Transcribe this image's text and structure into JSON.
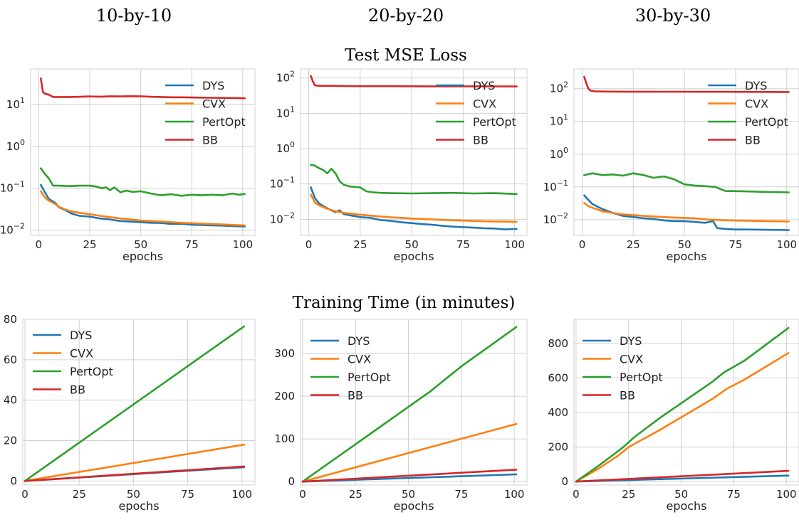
{
  "figure": {
    "column_titles": [
      "10-by-10",
      "20-by-20",
      "30-by-30"
    ],
    "row_titles": [
      "Test MSE Loss",
      "Training Time (in minutes)"
    ]
  },
  "colors": {
    "DYS": "#1f77b4",
    "CVX": "#ff7f0e",
    "PertOpt": "#2ca02c",
    "BB": "#d62728"
  },
  "chart_data": [
    {
      "type": "line",
      "title": "10-by-10",
      "xlabel": "epochs",
      "ylabel": "",
      "yscale": "log",
      "xlim": [
        -4,
        106
      ],
      "ylim": [
        0.0075,
        70
      ],
      "xticks": [
        0,
        25,
        50,
        75,
        100
      ],
      "yticks": [
        {
          "value": 0.01,
          "base": "10",
          "exp": "−2"
        },
        {
          "value": 0.1,
          "base": "10",
          "exp": "−1"
        },
        {
          "value": 1,
          "base": "10",
          "exp": "0"
        },
        {
          "value": 10,
          "base": "10",
          "exp": "1"
        }
      ],
      "legend": "top-right",
      "legend_entries": [
        "DYS",
        "CVX",
        "PertOpt",
        "BB"
      ],
      "grid": true,
      "series": [
        {
          "name": "DYS",
          "x": [
            1,
            3,
            5,
            8,
            10,
            13,
            16,
            20,
            25,
            30,
            35,
            40,
            45,
            50,
            55,
            60,
            65,
            70,
            75,
            80,
            85,
            90,
            95,
            101
          ],
          "y": [
            0.12,
            0.08,
            0.055,
            0.045,
            0.035,
            0.03,
            0.025,
            0.022,
            0.021,
            0.019,
            0.018,
            0.0165,
            0.016,
            0.0155,
            0.015,
            0.0148,
            0.014,
            0.0142,
            0.0135,
            0.0132,
            0.013,
            0.0128,
            0.0125,
            0.0122
          ]
        },
        {
          "name": "CVX",
          "x": [
            1,
            3,
            5,
            8,
            10,
            13,
            16,
            20,
            25,
            30,
            35,
            40,
            45,
            50,
            55,
            60,
            65,
            70,
            75,
            80,
            85,
            90,
            95,
            101
          ],
          "y": [
            0.085,
            0.06,
            0.05,
            0.042,
            0.036,
            0.031,
            0.028,
            0.026,
            0.024,
            0.022,
            0.0205,
            0.019,
            0.018,
            0.017,
            0.0165,
            0.016,
            0.0155,
            0.015,
            0.0147,
            0.0143,
            0.014,
            0.0137,
            0.0133,
            0.013
          ]
        },
        {
          "name": "PertOpt",
          "x": [
            1,
            3,
            5,
            7,
            10,
            15,
            20,
            25,
            28,
            31,
            33,
            35,
            37,
            40,
            43,
            46,
            50,
            55,
            60,
            65,
            70,
            75,
            80,
            85,
            90,
            95,
            98,
            101
          ],
          "y": [
            0.3,
            0.22,
            0.17,
            0.115,
            0.115,
            0.112,
            0.115,
            0.115,
            0.11,
            0.1,
            0.105,
            0.09,
            0.105,
            0.08,
            0.088,
            0.082,
            0.085,
            0.075,
            0.068,
            0.072,
            0.066,
            0.07,
            0.068,
            0.07,
            0.068,
            0.075,
            0.07,
            0.073
          ]
        },
        {
          "name": "BB",
          "x": [
            1,
            2,
            3,
            5,
            7,
            10,
            15,
            20,
            25,
            30,
            35,
            40,
            45,
            50,
            55,
            60,
            65,
            70,
            75,
            80,
            85,
            90,
            95,
            101
          ],
          "y": [
            42,
            20,
            18,
            17,
            15,
            15,
            15,
            15.2,
            15.5,
            15.3,
            15.6,
            15.5,
            15.7,
            15.6,
            15.2,
            15.0,
            14.8,
            14.8,
            14.6,
            14.5,
            14.4,
            14.3,
            14.2,
            14.0
          ]
        }
      ]
    },
    {
      "type": "line",
      "title": "20-by-20",
      "xlabel": "epochs",
      "ylabel": "",
      "yscale": "log",
      "xlim": [
        -4,
        106
      ],
      "ylim": [
        0.0035,
        180
      ],
      "xticks": [
        0,
        25,
        50,
        75,
        100
      ],
      "yticks": [
        {
          "value": 0.01,
          "base": "10",
          "exp": "−2"
        },
        {
          "value": 0.1,
          "base": "10",
          "exp": "−1"
        },
        {
          "value": 1,
          "base": "10",
          "exp": "0"
        },
        {
          "value": 10,
          "base": "10",
          "exp": "1"
        },
        {
          "value": 100,
          "base": "10",
          "exp": "2"
        }
      ],
      "legend": "top-right",
      "legend_entries": [
        "DYS",
        "CVX",
        "PertOpt",
        "BB"
      ],
      "grid": true,
      "series": [
        {
          "name": "DYS",
          "x": [
            1,
            3,
            5,
            8,
            10,
            13,
            15,
            17,
            20,
            25,
            30,
            35,
            40,
            45,
            50,
            55,
            60,
            65,
            70,
            75,
            80,
            85,
            90,
            95,
            101
          ],
          "y": [
            0.08,
            0.04,
            0.028,
            0.022,
            0.019,
            0.016,
            0.018,
            0.014,
            0.013,
            0.0115,
            0.011,
            0.0095,
            0.009,
            0.0082,
            0.0078,
            0.0073,
            0.007,
            0.0065,
            0.0062,
            0.006,
            0.0058,
            0.0056,
            0.0055,
            0.0052,
            0.0053
          ]
        },
        {
          "name": "CVX",
          "x": [
            1,
            3,
            5,
            8,
            10,
            13,
            16,
            20,
            25,
            30,
            35,
            40,
            45,
            50,
            55,
            60,
            65,
            70,
            75,
            80,
            85,
            90,
            95,
            101
          ],
          "y": [
            0.05,
            0.03,
            0.025,
            0.021,
            0.019,
            0.017,
            0.0155,
            0.0145,
            0.0135,
            0.0127,
            0.012,
            0.0114,
            0.011,
            0.0105,
            0.0102,
            0.0099,
            0.0096,
            0.0094,
            0.0092,
            0.009,
            0.0088,
            0.0087,
            0.0086,
            0.0085
          ]
        },
        {
          "name": "PertOpt",
          "x": [
            1,
            3,
            5,
            7,
            9,
            11,
            13,
            15,
            17,
            20,
            25,
            28,
            31,
            35,
            40,
            50,
            60,
            70,
            80,
            90,
            101
          ],
          "y": [
            0.35,
            0.33,
            0.28,
            0.25,
            0.2,
            0.27,
            0.2,
            0.12,
            0.095,
            0.085,
            0.08,
            0.062,
            0.058,
            0.056,
            0.055,
            0.054,
            0.055,
            0.056,
            0.054,
            0.055,
            0.052
          ]
        },
        {
          "name": "BB",
          "x": [
            1,
            2,
            3,
            5,
            10,
            20,
            30,
            40,
            50,
            60,
            70,
            80,
            90,
            101
          ],
          "y": [
            115,
            80,
            62,
            60,
            60,
            59,
            58.5,
            58.5,
            58.3,
            58.2,
            58,
            58,
            57.8,
            57.5
          ]
        }
      ]
    },
    {
      "type": "line",
      "title": "30-by-30",
      "xlabel": "epochs",
      "ylabel": "",
      "yscale": "log",
      "xlim": [
        -4,
        106
      ],
      "ylim": [
        0.0033,
        400
      ],
      "xticks": [
        0,
        25,
        50,
        75,
        100
      ],
      "yticks": [
        {
          "value": 0.01,
          "base": "10",
          "exp": "−2"
        },
        {
          "value": 0.1,
          "base": "10",
          "exp": "−1"
        },
        {
          "value": 1,
          "base": "10",
          "exp": "0"
        },
        {
          "value": 10,
          "base": "10",
          "exp": "1"
        },
        {
          "value": 100,
          "base": "10",
          "exp": "2"
        }
      ],
      "legend": "top-right",
      "legend_entries": [
        "DYS",
        "CVX",
        "PertOpt",
        "BB"
      ],
      "grid": true,
      "series": [
        {
          "name": "DYS",
          "x": [
            1,
            3,
            5,
            8,
            10,
            15,
            20,
            25,
            30,
            35,
            40,
            45,
            50,
            55,
            60,
            62,
            64,
            66,
            70,
            75,
            80,
            90,
            101
          ],
          "y": [
            0.055,
            0.04,
            0.03,
            0.024,
            0.021,
            0.016,
            0.013,
            0.012,
            0.011,
            0.0105,
            0.0095,
            0.009,
            0.009,
            0.0085,
            0.008,
            0.0085,
            0.009,
            0.0055,
            0.0052,
            0.005,
            0.005,
            0.0049,
            0.0048
          ]
        },
        {
          "name": "CVX",
          "x": [
            1,
            3,
            5,
            8,
            10,
            15,
            20,
            25,
            30,
            35,
            40,
            45,
            50,
            55,
            60,
            65,
            70,
            75,
            80,
            90,
            101
          ],
          "y": [
            0.032,
            0.026,
            0.023,
            0.02,
            0.018,
            0.016,
            0.0145,
            0.0138,
            0.013,
            0.0125,
            0.012,
            0.0116,
            0.0113,
            0.011,
            0.0102,
            0.0098,
            0.0096,
            0.0094,
            0.0093,
            0.009,
            0.0088
          ]
        },
        {
          "name": "PertOpt",
          "x": [
            1,
            5,
            10,
            15,
            20,
            25,
            30,
            35,
            40,
            45,
            50,
            55,
            60,
            65,
            70,
            80,
            90,
            101
          ],
          "y": [
            0.23,
            0.26,
            0.23,
            0.24,
            0.22,
            0.26,
            0.23,
            0.19,
            0.21,
            0.17,
            0.12,
            0.11,
            0.105,
            0.1,
            0.075,
            0.073,
            0.07,
            0.068
          ]
        },
        {
          "name": "BB",
          "x": [
            1,
            2,
            3,
            4,
            6,
            10,
            20,
            30,
            40,
            50,
            60,
            70,
            80,
            90,
            101
          ],
          "y": [
            230,
            150,
            100,
            88,
            83,
            82,
            81,
            81,
            80.5,
            80.5,
            80.3,
            80.2,
            80,
            79.5,
            79
          ]
        }
      ]
    },
    {
      "type": "line",
      "title": "10-by-10",
      "xlabel": "epochs",
      "ylabel": "",
      "yscale": "linear",
      "xlim": [
        -1,
        106
      ],
      "ylim": [
        -2,
        80
      ],
      "xticks": [
        0,
        25,
        50,
        75,
        100
      ],
      "yticks": [
        {
          "value": 0,
          "label": "0"
        },
        {
          "value": 20,
          "label": "20"
        },
        {
          "value": 40,
          "label": "40"
        },
        {
          "value": 60,
          "label": "60"
        },
        {
          "value": 80,
          "label": "80"
        }
      ],
      "legend": "top-left",
      "legend_entries": [
        "DYS",
        "CVX",
        "PertOpt",
        "BB"
      ],
      "grid": true,
      "series": [
        {
          "name": "DYS",
          "x": [
            0,
            101
          ],
          "y": [
            0,
            6.8
          ]
        },
        {
          "name": "CVX",
          "x": [
            0,
            101
          ],
          "y": [
            0,
            18
          ]
        },
        {
          "name": "PertOpt",
          "x": [
            0,
            101
          ],
          "y": [
            0,
            76.5
          ]
        },
        {
          "name": "BB",
          "x": [
            0,
            101
          ],
          "y": [
            0,
            7.2
          ]
        }
      ]
    },
    {
      "type": "line",
      "title": "20-by-20",
      "xlabel": "epochs",
      "ylabel": "",
      "yscale": "linear",
      "xlim": [
        -1,
        106
      ],
      "ylim": [
        -8,
        380
      ],
      "xticks": [
        0,
        25,
        50,
        75,
        100
      ],
      "yticks": [
        {
          "value": 0,
          "label": "0"
        },
        {
          "value": 100,
          "label": "100"
        },
        {
          "value": 200,
          "label": "200"
        },
        {
          "value": 300,
          "label": "300"
        }
      ],
      "legend": "top-left",
      "legend_entries": [
        "DYS",
        "CVX",
        "PertOpt",
        "BB"
      ],
      "grid": true,
      "series": [
        {
          "name": "DYS",
          "x": [
            0,
            101
          ],
          "y": [
            0,
            17
          ]
        },
        {
          "name": "CVX",
          "x": [
            0,
            101
          ],
          "y": [
            0,
            135
          ]
        },
        {
          "name": "PertOpt",
          "x": [
            0,
            60,
            65,
            75,
            101
          ],
          "y": [
            0,
            210,
            230,
            270,
            362
          ]
        },
        {
          "name": "BB",
          "x": [
            0,
            101
          ],
          "y": [
            0,
            28
          ]
        }
      ]
    },
    {
      "type": "line",
      "title": "30-by-30",
      "xlabel": "epochs",
      "ylabel": "",
      "yscale": "linear",
      "xlim": [
        -1,
        106
      ],
      "ylim": [
        -20,
        940
      ],
      "xticks": [
        0,
        25,
        50,
        75,
        100
      ],
      "yticks": [
        {
          "value": 0,
          "label": "0"
        },
        {
          "value": 200,
          "label": "200"
        },
        {
          "value": 400,
          "label": "400"
        },
        {
          "value": 600,
          "label": "600"
        },
        {
          "value": 800,
          "label": "800"
        }
      ],
      "legend": "top-left",
      "legend_entries": [
        "DYS",
        "CVX",
        "PertOpt",
        "BB"
      ],
      "grid": true,
      "series": [
        {
          "name": "DYS",
          "x": [
            0,
            101
          ],
          "y": [
            0,
            35
          ]
        },
        {
          "name": "CVX",
          "x": [
            0,
            10,
            20,
            25,
            40,
            65,
            72,
            80,
            101
          ],
          "y": [
            0,
            70,
            150,
            200,
            300,
            480,
            540,
            590,
            745
          ]
        },
        {
          "name": "PertOpt",
          "x": [
            0,
            10,
            22,
            28,
            40,
            65,
            70,
            80,
            101
          ],
          "y": [
            0,
            85,
            195,
            260,
            370,
            580,
            630,
            700,
            890
          ]
        },
        {
          "name": "BB",
          "x": [
            0,
            101
          ],
          "y": [
            0,
            62
          ]
        }
      ]
    }
  ]
}
